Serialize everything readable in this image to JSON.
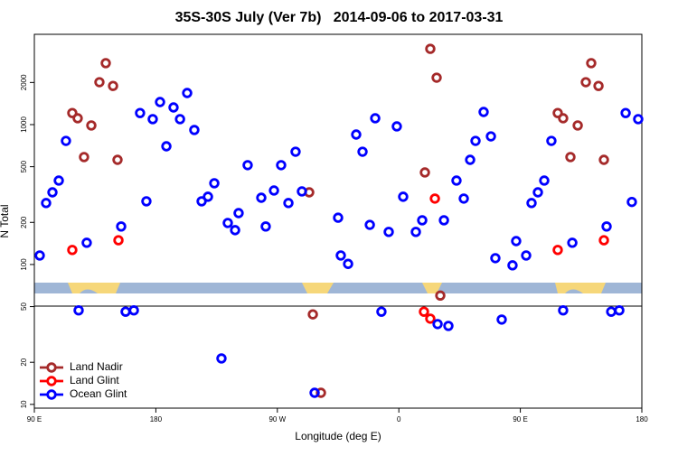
{
  "chart_data": {
    "type": "scatter",
    "title": "35S-30S July (Ver 7b)   2014-09-06 to 2017-03-31",
    "x_label": "Longitude (deg E)",
    "y_label": "N Total",
    "xlim": [
      90,
      540
    ],
    "ylim": [
      9.4,
      4420
    ],
    "log_y": true,
    "legend": "lower left",
    "xticks": [
      {
        "value": 90,
        "label": "90 E"
      },
      {
        "value": 180,
        "label": "180"
      },
      {
        "value": 270,
        "label": "90 W"
      },
      {
        "value": 360,
        "label": "0"
      },
      {
        "value": 450,
        "label": "90 E"
      },
      {
        "value": 540,
        "label": "180"
      }
    ],
    "yticks": [
      10,
      20,
      50,
      100,
      200,
      500,
      1000,
      2000
    ],
    "series": [
      {
        "name": "Land Nadir",
        "color": "#a52a2a",
        "x": [
          118.1,
          122.1,
          126.8,
          132.2,
          138.2,
          142.9,
          148.3,
          151.6,
          293.6,
          296.3,
          302.3,
          379.3,
          383.3,
          388.0,
          390.7,
          477.7,
          481.7,
          487.1,
          492.5,
          498.5,
          502.5,
          507.9,
          511.9
        ],
        "values": [
          1210,
          1110,
          586,
          986,
          2010,
          2750,
          1890,
          560,
          328,
          44,
          12.1,
          455,
          3480,
          2165,
          60,
          1210,
          1110,
          586,
          986,
          2010,
          2750,
          1890,
          560
        ]
      },
      {
        "name": "Land Glint",
        "color": "#ff0000",
        "x": [
          118.1,
          152.3,
          386.7,
          378.6,
          383.3,
          477.7,
          511.9
        ],
        "values": [
          127,
          149,
          296,
          46,
          41,
          127,
          149
        ]
      },
      {
        "name": "Ocean Glint",
        "color": "#0000ff",
        "x": [
          94.0,
          98.7,
          103.4,
          108.1,
          113.4,
          122.8,
          128.8,
          154.3,
          157.6,
          163.7,
          168.3,
          173.0,
          177.7,
          183.1,
          187.8,
          193.1,
          197.9,
          203.2,
          208.5,
          213.9,
          218.6,
          223.3,
          228.6,
          233.3,
          238.7,
          241.3,
          248.0,
          258.1,
          261.4,
          267.5,
          272.8,
          278.2,
          283.5,
          288.2,
          297.6,
          315.0,
          317.0,
          322.4,
          328.4,
          333.1,
          338.5,
          342.5,
          347.1,
          352.5,
          358.5,
          363.2,
          372.6,
          377.3,
          388.7,
          393.4,
          396.7,
          402.7,
          408.1,
          412.8,
          416.8,
          422.8,
          428.2,
          431.5,
          436.2,
          444.2,
          446.9,
          454.3,
          458.3,
          463.0,
          467.7,
          473.0,
          481.7,
          488.5,
          513.9,
          517.3,
          523.3,
          528.0,
          532.6,
          537.3
        ],
        "values": [
          116,
          275,
          328,
          398,
          765,
          47,
          143,
          187,
          46,
          47,
          1210,
          283,
          1094,
          1450,
          700,
          1326,
          1094,
          1682,
          915,
          283,
          305,
          381,
          21.3,
          198,
          176,
          233,
          513,
          300,
          187,
          338,
          513,
          275,
          640,
          333,
          12.1,
          216,
          116,
          101,
          849,
          640,
          192,
          1110,
          46,
          171,
          971,
          305,
          171,
          207,
          37.5,
          207,
          36.4,
          398,
          296,
          560,
          765,
          1231,
          824,
          111,
          40.4,
          98.6,
          147,
          116,
          275,
          328,
          398,
          765,
          47,
          143,
          187,
          46,
          47,
          1210,
          280,
          1094
        ]
      }
    ]
  }
}
